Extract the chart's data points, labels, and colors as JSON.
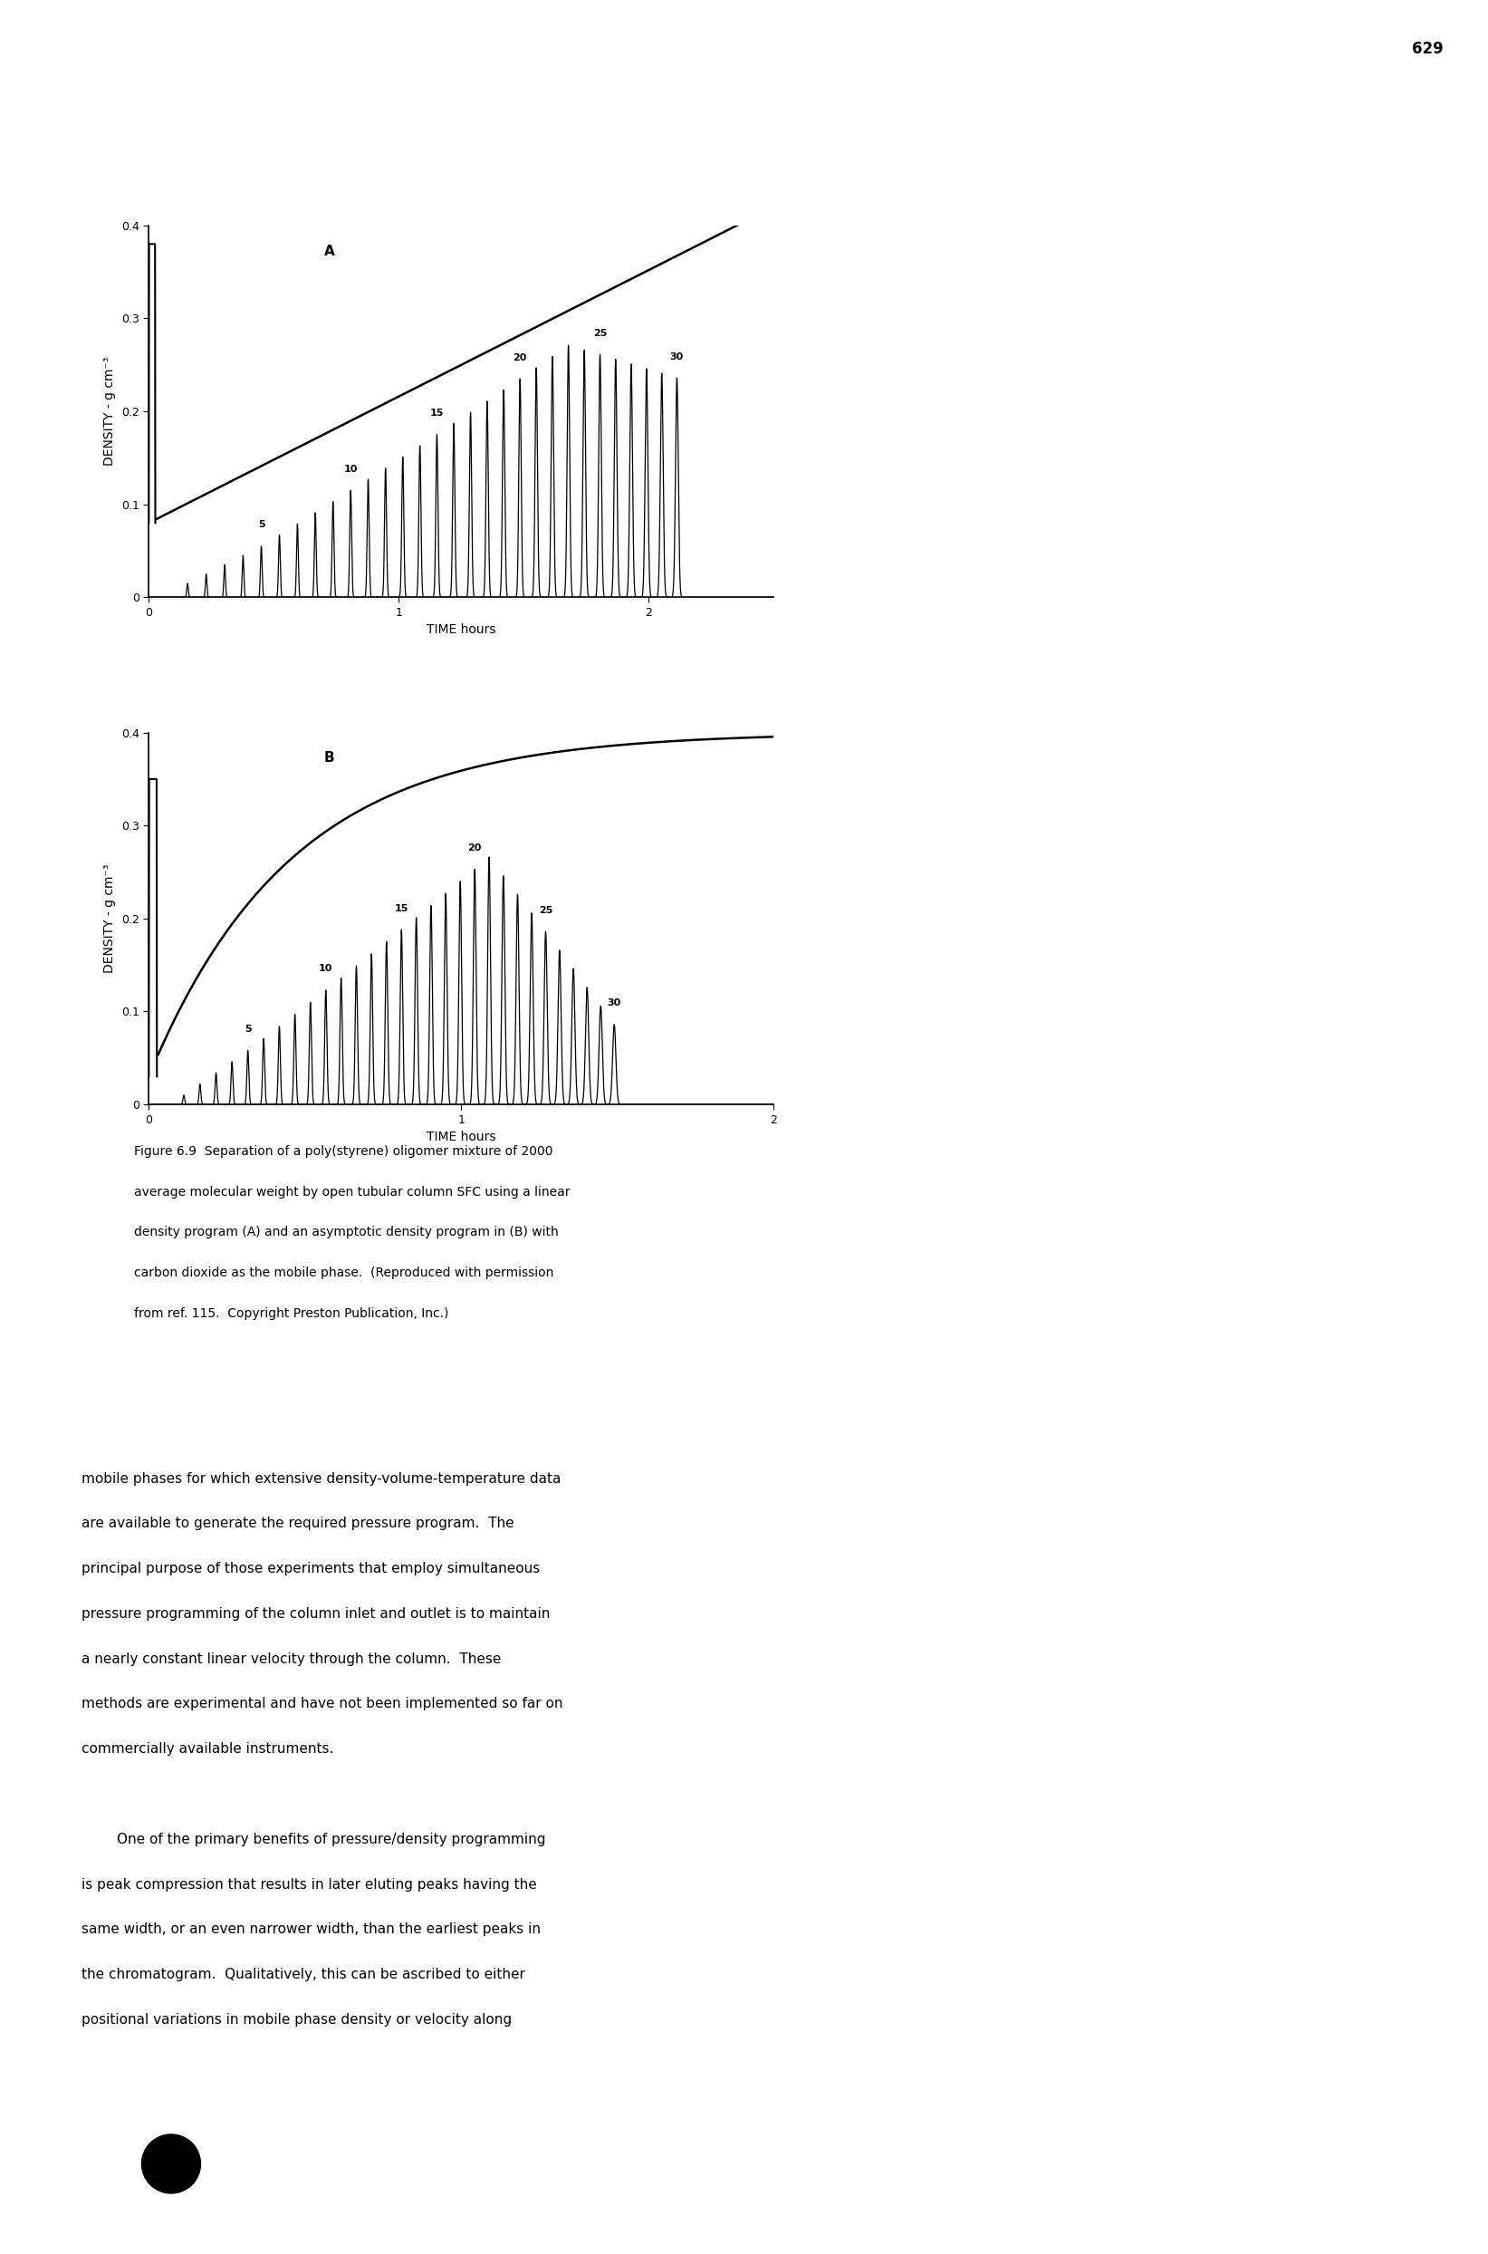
{
  "page_number": "629",
  "panel_A_label": "A",
  "panel_B_label": "B",
  "ylabel": "DENSITY - g cm⁻³",
  "xlabel": "TIME hours",
  "ylim": [
    0,
    0.4
  ],
  "yticks": [
    0.0,
    0.1,
    0.2,
    0.3,
    0.4
  ],
  "ytick_labels": [
    "0",
    "0.1",
    "0.2",
    "0.3",
    "0.4"
  ],
  "xlim_A": [
    0,
    2.5
  ],
  "xlim_B": [
    0,
    2.0
  ],
  "xticks_A": [
    0,
    1,
    2
  ],
  "xticks_B": [
    0,
    1,
    2
  ],
  "xtick_labels": [
    "0",
    "1",
    "2"
  ],
  "density_line_color": "#000000",
  "chromatogram_color": "#000000",
  "background_color": "#ffffff",
  "figure_caption_lines": [
    "Figure 6.9  Separation of a poly(styrene) oligomer mixture of 2000",
    "average molecular weight by open tubular column SFC using a linear",
    "density program (A) and an asymptotic density program in (B) with",
    "carbon dioxide as the mobile phase.  (Reproduced with permission",
    "from ref. 115.  Copyright Preston Publication, Inc.)"
  ],
  "body_text_lines": [
    "mobile phases for which extensive density-volume-temperature data",
    "are available to generate the required pressure program.  The",
    "principal purpose of those experiments that employ simultaneous",
    "pressure programming of the column inlet and outlet is to maintain",
    "a nearly constant linear velocity through the column.  These",
    "methods are experimental and have not been implemented so far on",
    "commercially available instruments.",
    "",
    "        One of the primary benefits of pressure/density programming",
    "is peak compression that results in later eluting peaks having the",
    "same width, or an even narrower width, than the earliest peaks in",
    "the chromatogram.  Qualitatively, this can be ascribed to either",
    "positional variations in mobile phase density or velocity along"
  ],
  "font_size_axis_label": 10,
  "font_size_tick": 9,
  "font_size_panel_label": 11,
  "font_size_caption": 10,
  "font_size_body": 11,
  "font_size_peak_number": 8,
  "font_size_page_number": 12
}
